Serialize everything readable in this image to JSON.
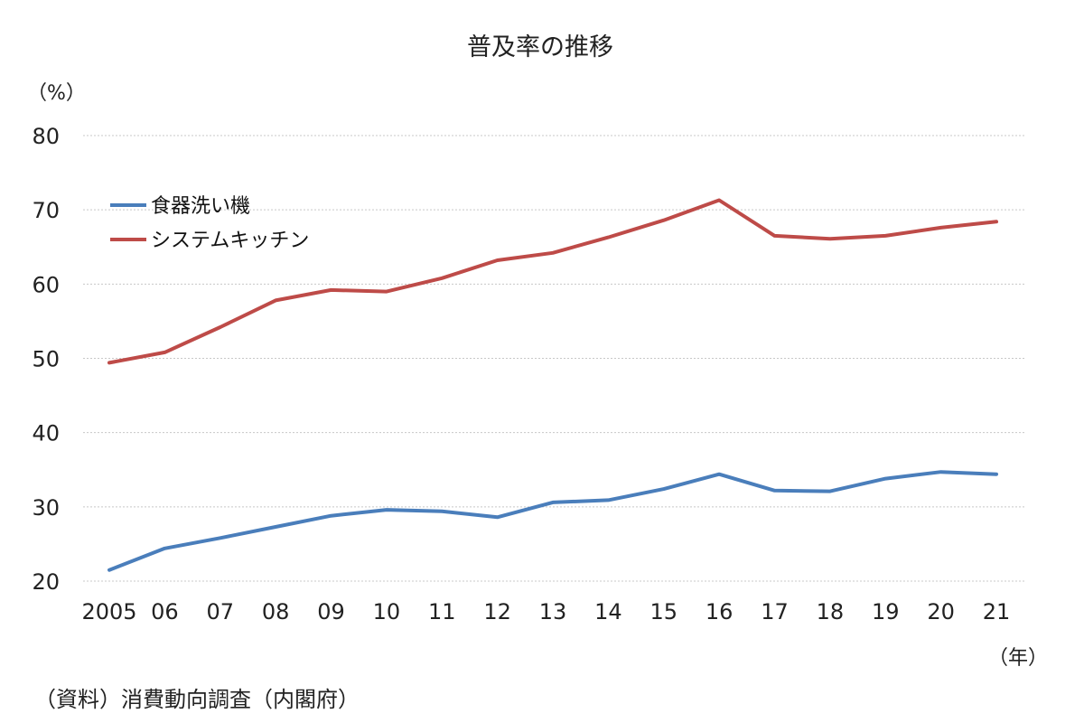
{
  "chart_data": {
    "type": "line",
    "title": "普及率の推移",
    "y_unit_label": "（%）",
    "x_unit_label": "（年）",
    "source_note": "（資料）消費動向調査（内閣府）",
    "categories": [
      "2005",
      "06",
      "07",
      "08",
      "09",
      "10",
      "11",
      "12",
      "13",
      "14",
      "15",
      "16",
      "17",
      "18",
      "19",
      "20",
      "21"
    ],
    "ylim": [
      20,
      80
    ],
    "y_ticks": [
      "20",
      "30",
      "40",
      "50",
      "60",
      "70",
      "80"
    ],
    "grid": true,
    "legend_position": "top-left",
    "series": [
      {
        "name": "食器洗い機",
        "color": "#4a7ebb",
        "values": [
          21.5,
          24.4,
          25.8,
          27.3,
          28.8,
          29.6,
          29.4,
          28.6,
          30.6,
          30.9,
          32.4,
          34.4,
          32.2,
          32.1,
          33.8,
          34.7,
          34.4
        ]
      },
      {
        "name": "システムキッチン",
        "color": "#be4b48",
        "values": [
          49.4,
          50.8,
          54.2,
          57.8,
          59.2,
          59.0,
          60.8,
          63.2,
          64.2,
          66.3,
          68.6,
          71.3,
          66.5,
          66.1,
          66.5,
          67.6,
          68.4
        ]
      }
    ]
  }
}
